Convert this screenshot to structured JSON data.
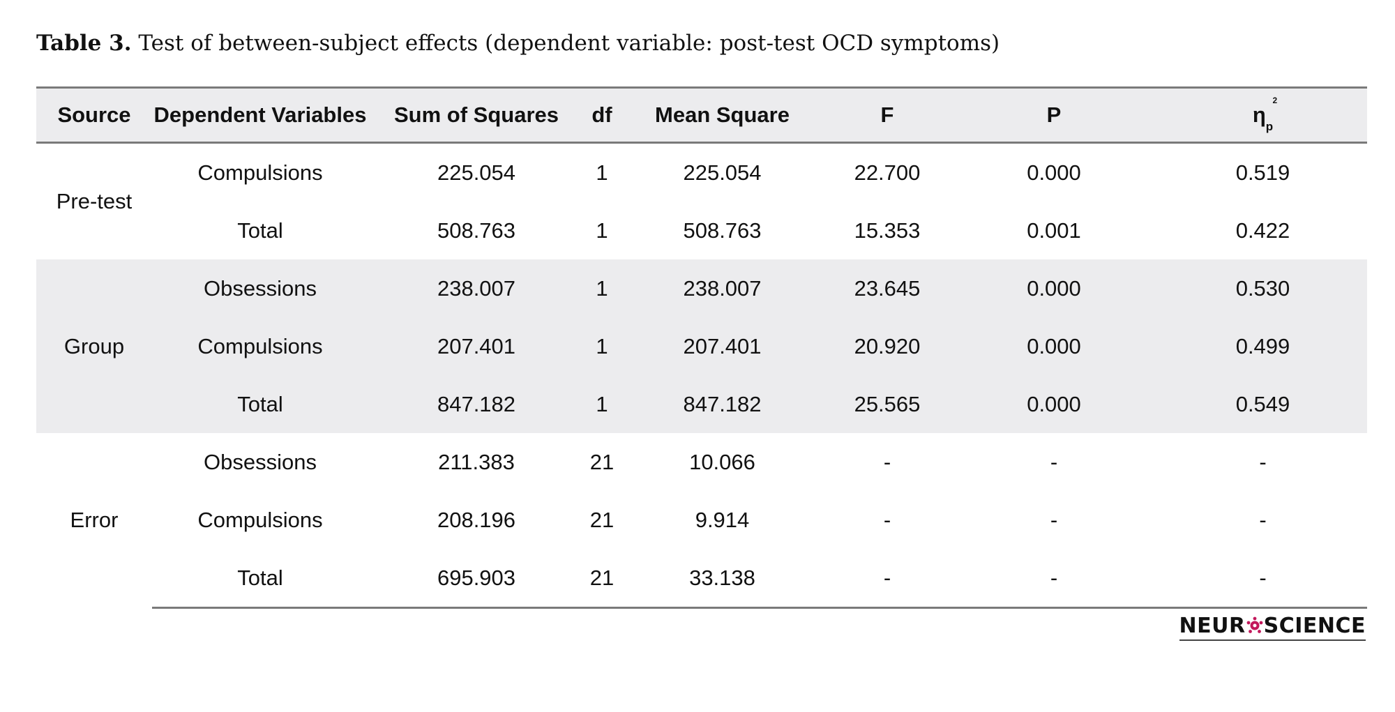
{
  "caption": {
    "label": "Table 3.",
    "text": " Test of between-subject effects (dependent variable: post-test OCD symptoms)"
  },
  "table": {
    "headers": {
      "source": "Source",
      "dependent": "Dependent Variables",
      "ss": "Sum of Squares",
      "df": "df",
      "ms": "Mean Square",
      "f": "F",
      "p": "P",
      "eta": "η",
      "eta_sub": "p",
      "eta_sup": "2"
    },
    "groups": [
      {
        "source": "Pre-test",
        "rows": [
          {
            "variable": "Compulsions",
            "ss": "225.054",
            "df": "1",
            "ms": "225.054",
            "f": "22.700",
            "p": "0.000",
            "eta": "0.519"
          },
          {
            "variable": "Total",
            "ss": "508.763",
            "df": "1",
            "ms": "508.763",
            "f": "15.353",
            "p": "0.001",
            "eta": "0.422"
          }
        ]
      },
      {
        "source": "Group",
        "rows": [
          {
            "variable": "Obsessions",
            "ss": "238.007",
            "df": "1",
            "ms": "238.007",
            "f": "23.645",
            "p": "0.000",
            "eta": "0.530"
          },
          {
            "variable": "Compulsions",
            "ss": "207.401",
            "df": "1",
            "ms": "207.401",
            "f": "20.920",
            "p": "0.000",
            "eta": "0.499"
          },
          {
            "variable": "Total",
            "ss": "847.182",
            "df": "1",
            "ms": "847.182",
            "f": "25.565",
            "p": "0.000",
            "eta": "0.549"
          }
        ]
      },
      {
        "source": "Error",
        "rows": [
          {
            "variable": "Obsessions",
            "ss": "211.383",
            "df": "21",
            "ms": "10.066",
            "f": "-",
            "p": "-",
            "eta": "-"
          },
          {
            "variable": "Compulsions",
            "ss": "208.196",
            "df": "21",
            "ms": "9.914",
            "f": "-",
            "p": "-",
            "eta": "-"
          },
          {
            "variable": "Total",
            "ss": "695.903",
            "df": "21",
            "ms": "33.138",
            "f": "-",
            "p": "-",
            "eta": "-"
          }
        ]
      }
    ]
  },
  "logo": {
    "left": "NEUR",
    "right": "SCIENCE",
    "icon": "neuron-icon",
    "accent_color": "#c2185b"
  },
  "colors": {
    "shade": "#ececee",
    "rule": "#7a7a7a"
  }
}
